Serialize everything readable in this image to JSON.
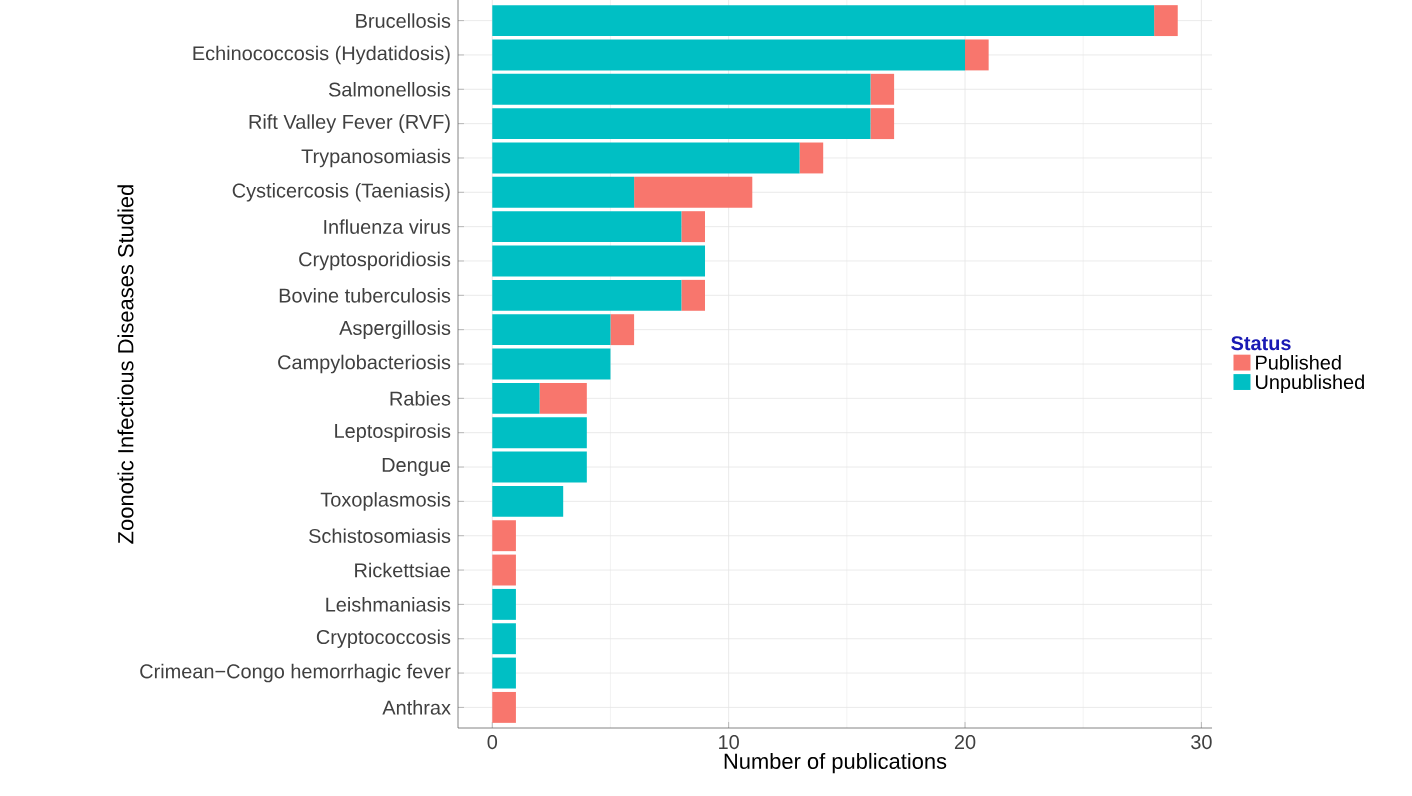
{
  "chart_data": {
    "type": "bar",
    "orientation": "horizontal",
    "stacked": true,
    "xlabel": "Number of publications",
    "ylabel": "Zoonotic Infectious Diseases Studied",
    "legend_title": "Status",
    "legend": "right",
    "grid": true,
    "categories": [
      "Brucellosis",
      "Echinococcosis (Hydatidosis)",
      "Salmonellosis",
      "Rift Valley Fever (RVF)",
      "Trypanosomiasis",
      "Cysticercosis (Taeniasis)",
      "Influenza virus",
      "Cryptosporidiosis",
      "Bovine tuberculosis",
      "Aspergillosis",
      "Campylobacteriosis",
      "Rabies",
      "Leptospirosis",
      "Dengue",
      "Toxoplasmosis",
      "Schistosomiasis",
      "Rickettsiae",
      "Leishmaniasis",
      "Cryptococcosis",
      "Crimean−Congo hemorrhagic fever",
      "Anthrax"
    ],
    "series": [
      {
        "name": "Unpublished",
        "color": "#00bfc4",
        "values": [
          28,
          20,
          16,
          16,
          13,
          6,
          8,
          9,
          8,
          5,
          5,
          2,
          4,
          4,
          3,
          0,
          0,
          1,
          1,
          1,
          0
        ]
      },
      {
        "name": "Published",
        "color": "#f8766d",
        "values": [
          1,
          1,
          1,
          1,
          1,
          5,
          1,
          0,
          1,
          1,
          0,
          2,
          0,
          0,
          0,
          1,
          1,
          0,
          0,
          0,
          1
        ]
      }
    ],
    "xlim": [
      -1.45,
      30.45
    ],
    "xticks": [
      0,
      10,
      20,
      30
    ]
  }
}
